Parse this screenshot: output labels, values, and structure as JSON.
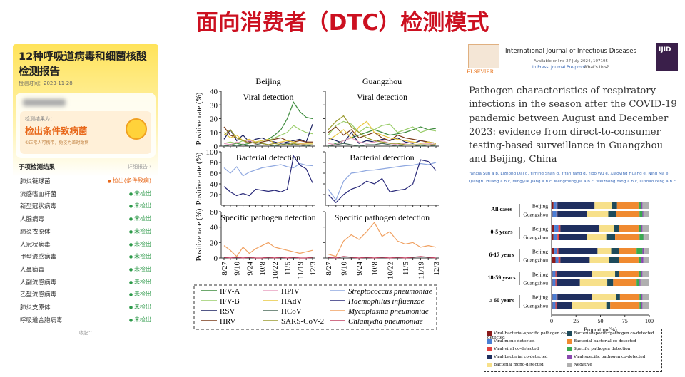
{
  "title": "面向消费者（DTC）检测模式",
  "app": {
    "title_lines": [
      "12种呼吸道病毒和细菌核酸",
      "检测报告"
    ],
    "test_time": "检测时间：2023-11-28",
    "result_label": "检测结果为：",
    "result": "检出条件致病菌",
    "note": "①正常人可携带，免疫力差时致病",
    "items_header": "子项检测结果",
    "details": "详细报告 ›",
    "collapse": "收起^",
    "items": [
      {
        "name": "肺炎链球菌",
        "result": "检出(条件致病)"
      },
      {
        "name": "流感嗜血杆菌",
        "result": "未检出"
      },
      {
        "name": "新型冠状病毒",
        "result": "未检出"
      },
      {
        "name": "人腺病毒",
        "result": "未检出"
      },
      {
        "name": "肺炎衣原体",
        "result": "未检出"
      },
      {
        "name": "人冠状病毒",
        "result": "未检出"
      },
      {
        "name": "甲型流感病毒",
        "result": "未检出"
      },
      {
        "name": "人鼻病毒",
        "result": "未检出"
      },
      {
        "name": "人副流感病毒",
        "result": "未检出"
      },
      {
        "name": "乙型流感病毒",
        "result": "未检出"
      },
      {
        "name": "肺炎支原体",
        "result": "未检出"
      },
      {
        "name": "呼吸道合胞病毒",
        "result": "未检出"
      }
    ]
  },
  "line_charts": {
    "type": "line",
    "columns": [
      "Beijing",
      "Guangzhou"
    ],
    "y_label": "Positive rate (%)",
    "categories": [
      "8/27",
      null,
      "9/10",
      null,
      "9/24",
      null,
      "10/8",
      null,
      "10/22",
      null,
      "11/5",
      null,
      "11/19",
      null,
      "12/3"
    ],
    "legend": [
      {
        "name": "IFV-A",
        "color": "#3d8b3d",
        "italic": false
      },
      {
        "name": "IFV-B",
        "color": "#9acd6a",
        "italic": false
      },
      {
        "name": "RSV",
        "color": "#1a2060",
        "italic": false
      },
      {
        "name": "HRV",
        "color": "#7a3b1a",
        "italic": false
      },
      {
        "name": "HPIV",
        "color": "#e8a0c0",
        "italic": false
      },
      {
        "name": "HAdV",
        "color": "#e8c840",
        "italic": false
      },
      {
        "name": "HCoV",
        "color": "#4a6a5a",
        "italic": false
      },
      {
        "name": "SARS-CoV-2",
        "color": "#9a9a30",
        "italic": false
      },
      {
        "name": "Streptococcus pneumoniae",
        "color": "#8fa8e0",
        "italic": true
      },
      {
        "name": "Haemophilus influenzae",
        "color": "#2a2a7a",
        "italic": true
      },
      {
        "name": "Mycoplasma pneumoniae",
        "color": "#f0a060",
        "italic": true
      },
      {
        "name": "Chlamydia pneumoniae",
        "color": "#c04060",
        "italic": true
      }
    ],
    "rows": [
      {
        "title": "Viral detection",
        "ylim": [
          0,
          40
        ],
        "yticks": [
          0,
          10,
          20,
          30,
          40
        ],
        "series": [
          [
            {
              "name": "IFV-A",
              "values": [
                0,
                1,
                2,
                1,
                2,
                3,
                4,
                5,
                8,
                12,
                20,
                32,
                25,
                21,
                20
              ]
            },
            {
              "name": "IFV-B",
              "values": [
                2,
                3,
                2,
                4,
                3,
                2,
                3,
                4,
                6,
                8,
                10,
                15,
                12,
                10,
                9
              ]
            },
            {
              "name": "RSV",
              "values": [
                5,
                12,
                4,
                8,
                3,
                5,
                6,
                4,
                3,
                2,
                3,
                4,
                5,
                3,
                16
              ]
            },
            {
              "name": "HRV",
              "values": [
                14,
                8,
                6,
                4,
                3,
                2,
                3,
                4,
                5,
                6,
                4,
                3,
                4,
                3,
                3
              ]
            },
            {
              "name": "HPIV",
              "values": [
                2,
                1,
                3,
                2,
                4,
                3,
                2,
                1,
                2,
                3,
                2,
                1,
                2,
                1,
                1
              ]
            },
            {
              "name": "HAdV",
              "values": [
                10,
                6,
                8,
                4,
                5,
                3,
                4,
                5,
                2,
                3,
                4,
                3,
                2,
                2,
                2
              ]
            },
            {
              "name": "HCoV",
              "values": [
                0,
                1,
                0,
                1,
                0,
                1,
                2,
                1,
                0,
                1,
                2,
                1,
                1,
                0,
                1
              ]
            },
            {
              "name": "SARS-CoV-2",
              "values": [
                8,
                12,
                6,
                4,
                2,
                3,
                2,
                1,
                2,
                1,
                1,
                2,
                1,
                1,
                1
              ]
            }
          ],
          [
            {
              "name": "IFV-A",
              "values": [
                0,
                2,
                4,
                6,
                8,
                10,
                12,
                10,
                8,
                9,
                10,
                12,
                14,
                12,
                13
              ]
            },
            {
              "name": "IFV-B",
              "values": [
                8,
                15,
                18,
                16,
                10,
                14,
                12,
                15,
                16,
                10,
                12,
                14,
                10,
                12,
                11
              ]
            },
            {
              "name": "RSV",
              "values": [
                6,
                4,
                2,
                10,
                2,
                4,
                3,
                5,
                4,
                6,
                3,
                2,
                4,
                3,
                2
              ]
            },
            {
              "name": "HRV",
              "values": [
                10,
                14,
                8,
                12,
                6,
                8,
                10,
                6,
                4,
                8,
                6,
                5,
                4,
                3,
                2
              ]
            },
            {
              "name": "HPIV",
              "values": [
                2,
                1,
                4,
                6,
                3,
                2,
                3,
                4,
                2,
                1,
                2,
                3,
                2,
                2,
                1
              ]
            },
            {
              "name": "HAdV",
              "values": [
                4,
                8,
                12,
                6,
                14,
                18,
                10,
                8,
                6,
                5,
                4,
                3,
                2,
                3,
                2
              ]
            },
            {
              "name": "HCoV",
              "values": [
                0,
                1,
                2,
                1,
                0,
                1,
                1,
                2,
                1,
                0,
                1,
                1,
                0,
                1,
                0
              ]
            },
            {
              "name": "SARS-CoV-2",
              "values": [
                12,
                18,
                22,
                14,
                10,
                6,
                4,
                3,
                2,
                2,
                1,
                1,
                1,
                1,
                1
              ]
            }
          ]
        ]
      },
      {
        "title": "Bacterial detection",
        "ylim": [
          0,
          100
        ],
        "yticks": [
          20,
          40,
          60,
          80,
          100
        ],
        "series": [
          [
            {
              "name": "Streptococcus pneumoniae",
              "values": [
                70,
                60,
                72,
                55,
                62,
                66,
                70,
                72,
                74,
                76,
                72,
                70,
                78,
                75,
                74
              ]
            },
            {
              "name": "Haemophilus influenzae",
              "values": [
                35,
                25,
                18,
                22,
                18,
                30,
                28,
                26,
                28,
                25,
                30,
                92,
                75,
                68,
                42
              ]
            }
          ],
          [
            {
              "name": "Streptococcus pneumoniae",
              "values": [
                30,
                10,
                45,
                60,
                62,
                65,
                66,
                68,
                70,
                72,
                74,
                75,
                78,
                76,
                80
              ]
            },
            {
              "name": "Haemophilus influenzae",
              "values": [
                20,
                5,
                20,
                30,
                35,
                45,
                40,
                50,
                25,
                28,
                30,
                40,
                85,
                82,
                65
              ]
            }
          ]
        ]
      },
      {
        "title": "Specific pathogen detection",
        "ylim": [
          0,
          60
        ],
        "yticks": [
          0,
          20,
          40,
          60
        ],
        "series": [
          [
            {
              "name": "Mycoplasma pneumoniae",
              "values": [
                16,
                10,
                2,
                14,
                6,
                12,
                16,
                20,
                14,
                12,
                10,
                8,
                6,
                8,
                10
              ]
            },
            {
              "name": "Chlamydia pneumoniae",
              "values": [
                1,
                0,
                1,
                0,
                1,
                0,
                0,
                1,
                0,
                1,
                0,
                1,
                0,
                0,
                1
              ]
            }
          ],
          [
            {
              "name": "Mycoplasma pneumoniae",
              "values": [
                5,
                2,
                22,
                30,
                24,
                34,
                46,
                28,
                34,
                22,
                18,
                20,
                14,
                16,
                14
              ]
            },
            {
              "name": "Chlamydia pneumoniae",
              "values": [
                1,
                0,
                2,
                1,
                0,
                1,
                0,
                1,
                0,
                1,
                0,
                1,
                2,
                1,
                0
              ]
            }
          ]
        ]
      }
    ]
  },
  "paper": {
    "publisher": "ELSEVIER",
    "journal": "International Journal of Infectious Diseases",
    "available": "Available online 27 July 2024, 107195",
    "status": "In Press, Journal Pre-proof",
    "whats_this": "What's this?",
    "cover": "IJID",
    "title": "Pathogen characteristics of respiratory infections in the season after the COVID-19 pandemic between August and December 2023: evidence from direct-to-consumer testing-based surveillance in Guangzhou and Beijing, China",
    "authors": "Yanxia Sun a b, Lizhong Dai d, Yiming Shan d, Yifan Yang d, Yibo Wu e, Xiaoying Huang e, Ning Ma e, Qiangru Huang a b c, Mingyue Jiang a b c, Mengmeng Jia a b c, Weizhong Yang a b c, Luzhao Feng a b c"
  },
  "bar_chart": {
    "type": "bar",
    "orientation": "horizontal",
    "stacked": true,
    "xlim": [
      0,
      100
    ],
    "xticks": [
      0,
      25,
      50,
      75,
      100
    ],
    "x_label": "Proportion(%)",
    "segments": [
      {
        "name": "Viral-bacterial-specific pathogen co-detected",
        "color": "#8b1a1a"
      },
      {
        "name": "Viral mono-detected",
        "color": "#4a7fd4"
      },
      {
        "name": "Viral-viral co-detected",
        "color": "#e04040"
      },
      {
        "name": "Viral-bacterial co-detected",
        "color": "#1f2f5f"
      },
      {
        "name": "Bacterial mono-detected",
        "color": "#f7e08a"
      },
      {
        "name": "Bacterial-specific pathogen co-detected",
        "color": "#1e4a5a"
      },
      {
        "name": "Bacterial-bacterial co-detected",
        "color": "#f08a30"
      },
      {
        "name": "Specific pathogen detection",
        "color": "#3aaa50"
      },
      {
        "name": "Viral-specific pathogen co-detected",
        "color": "#8a4ab0"
      },
      {
        "name": "Negative",
        "color": "#b0b0b0"
      }
    ],
    "groups": [
      {
        "label": "All cases",
        "bars": [
          {
            "label": "Beijing",
            "values": [
              2,
              3,
              1,
              38,
              18,
              5,
              22,
              3,
              1,
              7
            ]
          },
          {
            "label": "Guangzhou",
            "values": [
              1,
              4,
              1,
              30,
              22,
              8,
              24,
              3,
              1,
              6
            ]
          }
        ]
      },
      {
        "label": "0-5 years",
        "bars": [
          {
            "label": "Beijing",
            "values": [
              3,
              4,
              2,
              40,
              15,
              5,
              20,
              3,
              1,
              7
            ]
          },
          {
            "label": "Guangzhou",
            "values": [
              2,
              4,
              2,
              28,
              20,
              9,
              25,
              4,
              1,
              5
            ]
          }
        ]
      },
      {
        "label": "6-17 years",
        "bars": [
          {
            "label": "Beijing",
            "values": [
              3,
              3,
              1,
              40,
              14,
              8,
              18,
              6,
              2,
              5
            ]
          },
          {
            "label": "Guangzhou",
            "values": [
              4,
              3,
              2,
              30,
              20,
              10,
              20,
              3,
              2,
              6
            ]
          }
        ]
      },
      {
        "label": "18-59 years",
        "bars": [
          {
            "label": "Beijing",
            "values": [
              1,
              3,
              1,
              36,
              24,
              4,
              20,
              3,
              1,
              7
            ]
          },
          {
            "label": "Guangzhou",
            "values": [
              1,
              3,
              1,
              24,
              28,
              6,
              24,
              3,
              1,
              9
            ]
          }
        ]
      },
      {
        "label": "≥ 60 years",
        "bars": [
          {
            "label": "Beijing",
            "values": [
              1,
              4,
              1,
              35,
              25,
              4,
              20,
              2,
              1,
              7
            ]
          },
          {
            "label": "Guangzhou",
            "values": [
              1,
              3,
              1,
              16,
              35,
              4,
              30,
              2,
              1,
              7
            ]
          }
        ]
      }
    ]
  }
}
